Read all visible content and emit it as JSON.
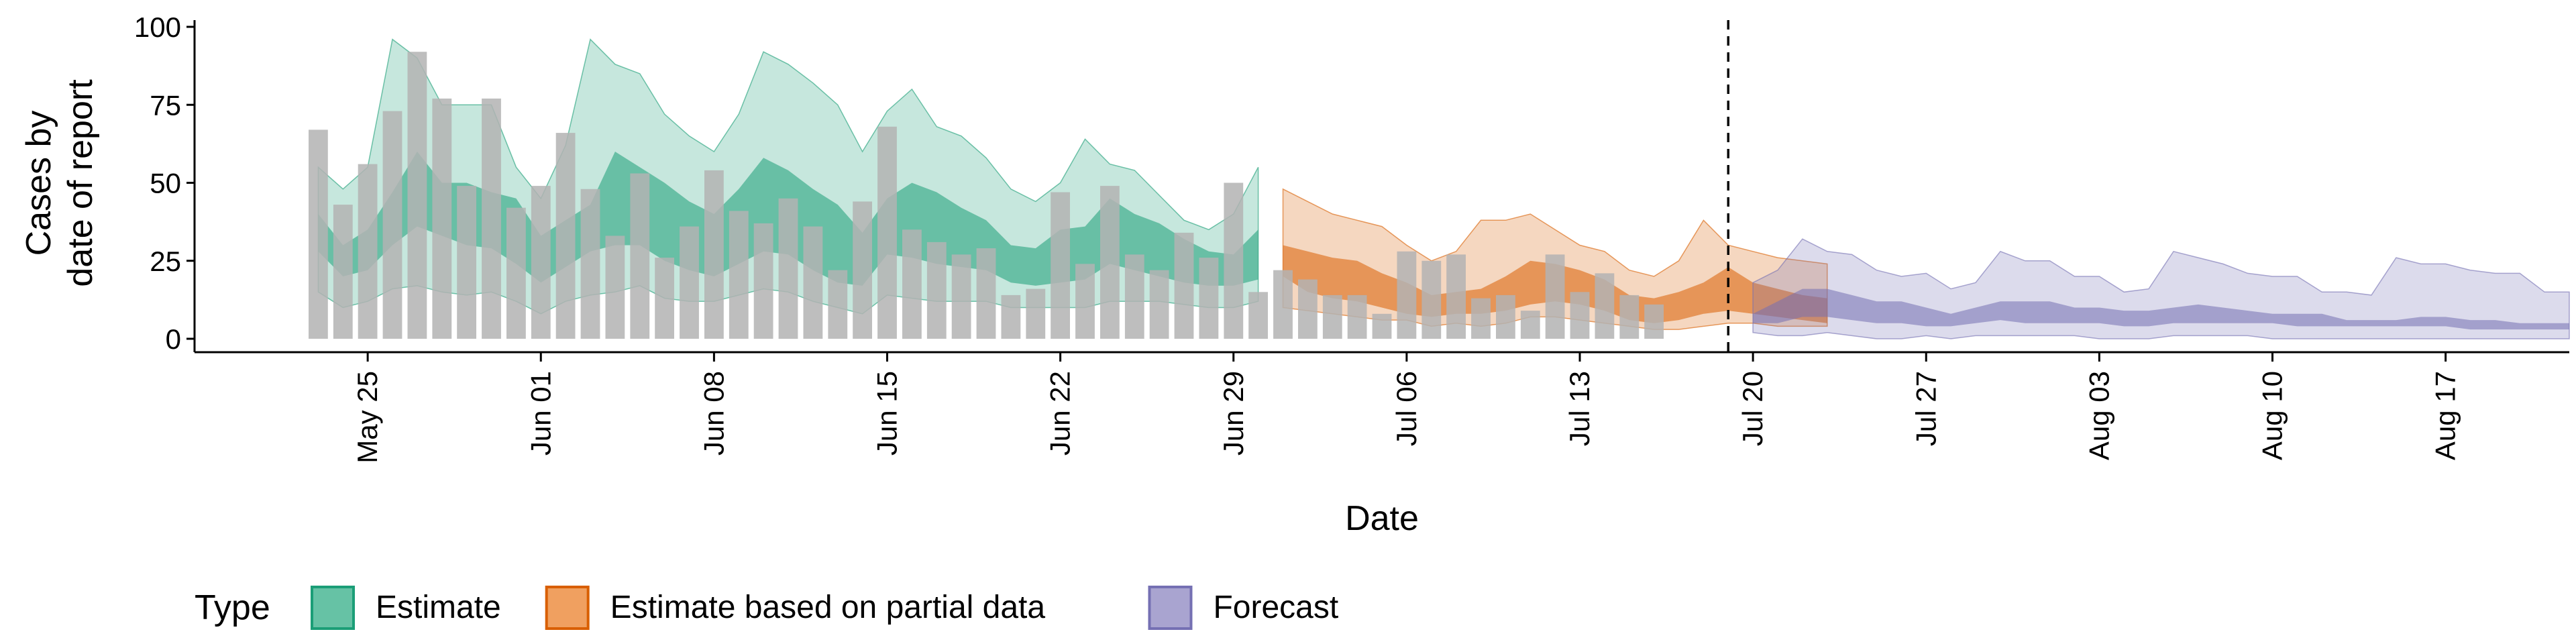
{
  "chart_data": {
    "type": "area",
    "xlabel": "Date",
    "ylabel_lines": [
      "Cases by",
      "date of report"
    ],
    "ylim": [
      0,
      100
    ],
    "yticks": [
      0,
      25,
      50,
      75,
      100
    ],
    "xlim": [
      "2020-05-18",
      "2020-08-22"
    ],
    "xticks": [
      {
        "date": "2020-05-25",
        "label": "May 25"
      },
      {
        "date": "2020-06-01",
        "label": "Jun 01"
      },
      {
        "date": "2020-06-08",
        "label": "Jun 08"
      },
      {
        "date": "2020-06-15",
        "label": "Jun 15"
      },
      {
        "date": "2020-06-22",
        "label": "Jun 22"
      },
      {
        "date": "2020-06-29",
        "label": "Jun 29"
      },
      {
        "date": "2020-07-06",
        "label": "Jul 06"
      },
      {
        "date": "2020-07-13",
        "label": "Jul 13"
      },
      {
        "date": "2020-07-20",
        "label": "Jul 20"
      },
      {
        "date": "2020-07-27",
        "label": "Jul 27"
      },
      {
        "date": "2020-08-03",
        "label": "Aug 03"
      },
      {
        "date": "2020-08-10",
        "label": "Aug 10"
      },
      {
        "date": "2020-08-17",
        "label": "Aug 17"
      }
    ],
    "forecast_line_date": "2020-07-19",
    "bars": {
      "start_date": "2020-05-23",
      "color": "#b3b3b3",
      "values": [
        67,
        43,
        56,
        73,
        92,
        77,
        49,
        77,
        42,
        49,
        66,
        48,
        33,
        53,
        26,
        36,
        54,
        41,
        37,
        45,
        36,
        22,
        44,
        68,
        35,
        31,
        27,
        29,
        14,
        16,
        47,
        24,
        49,
        27,
        22,
        34,
        26,
        50,
        15,
        22,
        19,
        14,
        14,
        8,
        28,
        25,
        27,
        13,
        14,
        9,
        27,
        15,
        21,
        14,
        11
      ]
    },
    "legend": {
      "title": "Type",
      "position": "bottom-left",
      "items": [
        {
          "label": "Estimate",
          "fill": "#66c2a5",
          "stroke": "#1b9e77"
        },
        {
          "label": "Estimate based on partial data",
          "fill": "#f0a060",
          "stroke": "#d95f02"
        },
        {
          "label": "Forecast",
          "fill": "#a9a4d0",
          "stroke": "#7570b3"
        }
      ]
    },
    "series": [
      {
        "name": "Estimate",
        "start_date": "2020-05-23",
        "color": "#1b9e77",
        "outer_opacity": 0.25,
        "inner_opacity": 0.55,
        "lower90": [
          15,
          10,
          12,
          16,
          17,
          15,
          14,
          15,
          12,
          8,
          12,
          14,
          15,
          17,
          13,
          12,
          12,
          14,
          16,
          15,
          12,
          10,
          8,
          14,
          13,
          12,
          12,
          12,
          10,
          10,
          10,
          10,
          12,
          12,
          12,
          11,
          10,
          10,
          12
        ],
        "lower50": [
          28,
          20,
          22,
          30,
          36,
          33,
          30,
          29,
          24,
          18,
          23,
          28,
          30,
          30,
          25,
          22,
          20,
          24,
          28,
          27,
          22,
          18,
          17,
          27,
          26,
          24,
          23,
          22,
          18,
          17,
          18,
          19,
          24,
          22,
          20,
          18,
          17,
          17,
          19
        ],
        "upper50": [
          40,
          30,
          35,
          47,
          60,
          50,
          50,
          47,
          45,
          33,
          38,
          43,
          60,
          55,
          50,
          44,
          40,
          48,
          58,
          54,
          48,
          43,
          34,
          45,
          50,
          47,
          42,
          38,
          30,
          29,
          35,
          36,
          45,
          40,
          37,
          32,
          28,
          27,
          35
        ],
        "upper90": [
          55,
          48,
          55,
          96,
          90,
          75,
          75,
          75,
          55,
          45,
          62,
          96,
          88,
          85,
          72,
          65,
          60,
          72,
          92,
          88,
          82,
          75,
          60,
          73,
          80,
          68,
          65,
          58,
          48,
          44,
          50,
          64,
          56,
          54,
          46,
          38,
          35,
          40,
          55
        ]
      },
      {
        "name": "Estimate based on partial data",
        "start_date": "2020-07-01",
        "color": "#d95f02",
        "outer_opacity": 0.25,
        "inner_opacity": 0.55,
        "lower90": [
          10,
          9,
          8,
          7,
          6,
          6,
          4,
          5,
          4,
          5,
          7,
          7,
          6,
          5,
          4,
          3,
          3,
          4,
          5,
          5,
          4,
          4,
          4
        ],
        "lower50": [
          20,
          15,
          13,
          12,
          10,
          8,
          7,
          8,
          8,
          9,
          11,
          12,
          11,
          9,
          6,
          5,
          6,
          8,
          9,
          8,
          7,
          6,
          5
        ],
        "upper50": [
          30,
          28,
          26,
          25,
          21,
          18,
          14,
          15,
          16,
          20,
          25,
          24,
          22,
          19,
          14,
          13,
          15,
          18,
          23,
          18,
          16,
          14,
          13
        ],
        "upper90": [
          48,
          44,
          40,
          38,
          36,
          30,
          25,
          28,
          38,
          38,
          40,
          35,
          30,
          28,
          22,
          20,
          25,
          38,
          30,
          28,
          26,
          25,
          24
        ]
      },
      {
        "name": "Forecast",
        "start_date": "2020-07-20",
        "color": "#7570b3",
        "outer_opacity": 0.25,
        "inner_opacity": 0.55,
        "lower90": [
          2,
          1,
          1,
          2,
          1,
          0,
          0,
          1,
          0,
          1,
          1,
          1,
          1,
          1,
          0,
          0,
          0,
          1,
          1,
          1,
          1,
          0,
          0,
          0,
          0,
          0,
          0,
          0,
          0,
          0,
          0,
          0,
          0,
          0
        ],
        "lower50": [
          5,
          5,
          7,
          7,
          6,
          5,
          5,
          4,
          4,
          5,
          6,
          5,
          5,
          5,
          5,
          4,
          4,
          5,
          5,
          5,
          5,
          5,
          4,
          4,
          4,
          4,
          4,
          4,
          4,
          3,
          3,
          3,
          3,
          3
        ],
        "upper50": [
          8,
          12,
          16,
          16,
          14,
          12,
          12,
          10,
          8,
          10,
          12,
          12,
          12,
          10,
          10,
          9,
          9,
          10,
          11,
          10,
          9,
          8,
          8,
          8,
          6,
          6,
          6,
          7,
          7,
          6,
          6,
          5,
          5,
          5
        ],
        "upper90": [
          18,
          22,
          32,
          28,
          27,
          22,
          20,
          21,
          16,
          18,
          28,
          25,
          25,
          20,
          20,
          15,
          16,
          28,
          26,
          24,
          21,
          20,
          20,
          15,
          15,
          14,
          26,
          24,
          24,
          22,
          21,
          21,
          15,
          15
        ]
      }
    ]
  }
}
